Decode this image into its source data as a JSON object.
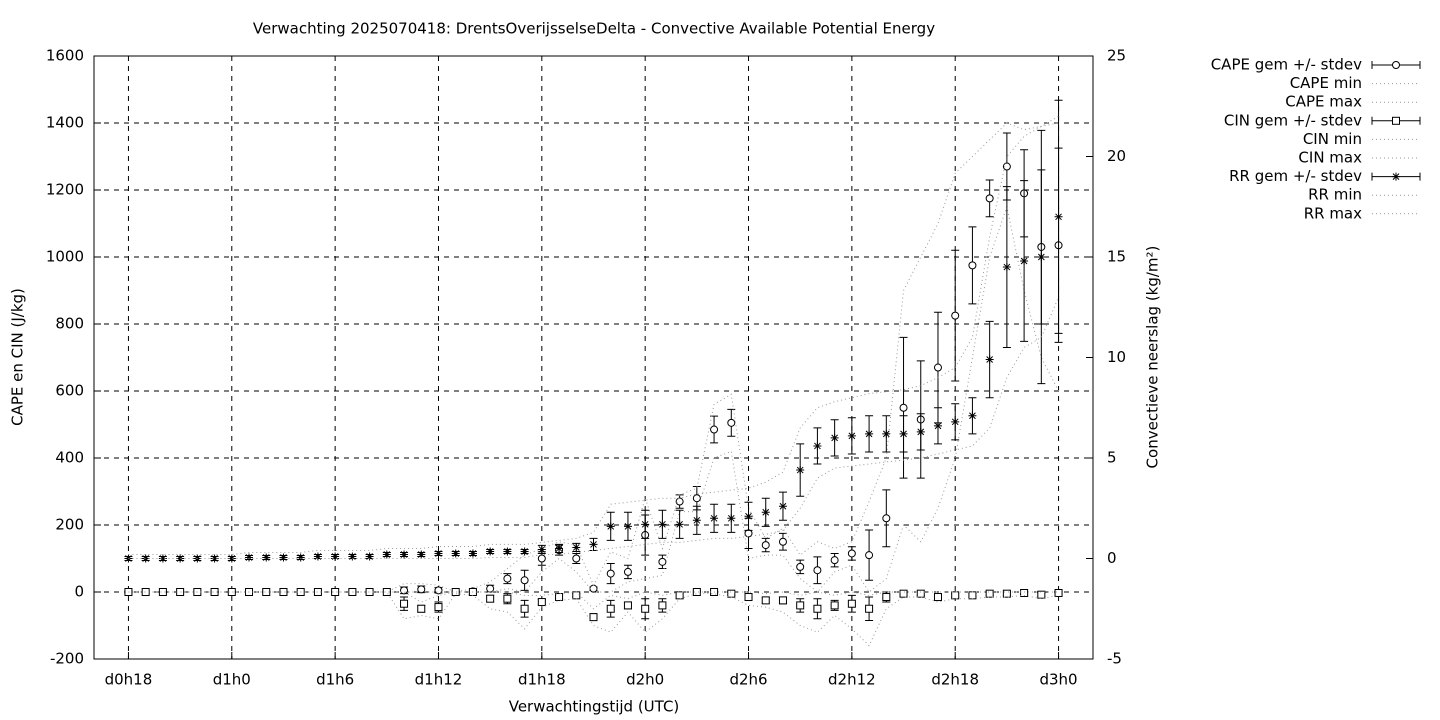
{
  "chart_data": {
    "type": "errorbar",
    "title": "Verwachting 2025070418: DrentsOverijsselseDelta - Convective Available Potential Energy",
    "xlabel": "Verwachtingstijd (UTC)",
    "ylabel": "CAPE en CIN (J/kg)",
    "y2label": "Convectieve neerslag (kg/m²)",
    "grid": true,
    "legend": "outside-right-top",
    "x": [
      18,
      19,
      20,
      21,
      22,
      23,
      24,
      25,
      26,
      27,
      28,
      29,
      30,
      31,
      32,
      33,
      34,
      35,
      36,
      37,
      38,
      39,
      40,
      41,
      42,
      43,
      44,
      45,
      46,
      47,
      48,
      49,
      50,
      51,
      52,
      53,
      54,
      55,
      56,
      57,
      58,
      59,
      60,
      61,
      62,
      63,
      64,
      65,
      66,
      67,
      68,
      69,
      70,
      71,
      72
    ],
    "xlim": [
      16,
      74
    ],
    "xticks": [
      {
        "value": 18,
        "label": "d0h18"
      },
      {
        "value": 24,
        "label": "d1h0"
      },
      {
        "value": 30,
        "label": "d1h6"
      },
      {
        "value": 36,
        "label": "d1h12"
      },
      {
        "value": 42,
        "label": "d1h18"
      },
      {
        "value": 48,
        "label": "d2h0"
      },
      {
        "value": 54,
        "label": "d2h6"
      },
      {
        "value": 60,
        "label": "d2h12"
      },
      {
        "value": 66,
        "label": "d2h18"
      },
      {
        "value": 72,
        "label": "d3h0"
      }
    ],
    "ylim": [
      -200,
      1600
    ],
    "yticks": [
      -200,
      0,
      200,
      400,
      600,
      800,
      1000,
      1200,
      1400,
      1600
    ],
    "y2lim": [
      -5,
      25
    ],
    "y2ticks": [
      -5,
      0,
      5,
      10,
      15,
      20,
      25
    ],
    "series": [
      {
        "name": "CAPE gem +/- stdev",
        "style": "errorbar",
        "marker": "circle",
        "color": "#000000",
        "values": [
          0,
          0,
          0,
          0,
          0,
          0,
          0,
          0,
          0,
          0,
          0,
          0,
          0,
          0,
          0,
          0,
          5,
          8,
          5,
          0,
          2,
          10,
          40,
          35,
          100,
          125,
          100,
          10,
          55,
          60,
          170,
          90,
          270,
          280,
          485,
          505,
          175,
          140,
          150,
          75,
          65,
          95,
          115,
          110,
          220,
          550,
          515,
          670,
          825,
          975,
          1175,
          1270,
          1190,
          1030,
          1035
        ],
        "errors": [
          0,
          0,
          0,
          0,
          0,
          0,
          0,
          0,
          0,
          0,
          0,
          0,
          0,
          0,
          0,
          0,
          10,
          10,
          8,
          0,
          3,
          10,
          15,
          30,
          20,
          15,
          15,
          5,
          30,
          20,
          60,
          20,
          20,
          35,
          40,
          40,
          45,
          20,
          25,
          20,
          40,
          20,
          20,
          75,
          85,
          210,
          175,
          165,
          195,
          115,
          55,
          100,
          130,
          230,
          290
        ]
      },
      {
        "name": "CAPE min",
        "style": "dotted",
        "color": "#999999",
        "values": [
          0,
          0,
          0,
          0,
          0,
          0,
          0,
          0,
          0,
          0,
          0,
          0,
          0,
          0,
          0,
          0,
          0,
          0,
          0,
          0,
          0,
          0,
          10,
          0,
          60,
          100,
          60,
          0,
          0,
          30,
          40,
          50,
          240,
          240,
          400,
          420,
          100,
          110,
          110,
          40,
          0,
          60,
          80,
          0,
          40,
          200,
          150,
          250,
          400,
          700,
          1000,
          1150,
          900,
          700,
          600
        ]
      },
      {
        "name": "CAPE max",
        "style": "dotted",
        "color": "#999999",
        "values": [
          0,
          0,
          0,
          0,
          0,
          0,
          0,
          0,
          0,
          0,
          0,
          0,
          0,
          0,
          0,
          0,
          25,
          25,
          20,
          0,
          10,
          30,
          70,
          110,
          130,
          150,
          140,
          20,
          120,
          100,
          280,
          130,
          290,
          310,
          560,
          590,
          250,
          160,
          190,
          110,
          150,
          130,
          150,
          270,
          400,
          900,
          1000,
          1100,
          1250,
          1300,
          1350,
          1400,
          1380,
          1390,
          1400
        ]
      },
      {
        "name": "CIN gem +/- stdev",
        "style": "errorbar",
        "marker": "square",
        "color": "#000000",
        "values": [
          0,
          0,
          0,
          0,
          0,
          0,
          0,
          0,
          0,
          0,
          0,
          0,
          0,
          0,
          0,
          0,
          -35,
          -50,
          -45,
          0,
          0,
          -20,
          -20,
          -50,
          -30,
          -15,
          -10,
          -75,
          -50,
          -40,
          -50,
          -40,
          -10,
          0,
          0,
          -5,
          -15,
          -25,
          -25,
          -40,
          -50,
          -40,
          -35,
          -50,
          -15,
          -5,
          -5,
          -15,
          -10,
          -10,
          -5,
          -5,
          -3,
          -8,
          -3
        ],
        "errors": [
          0,
          0,
          0,
          0,
          0,
          0,
          0,
          0,
          0,
          0,
          0,
          0,
          0,
          0,
          0,
          0,
          20,
          10,
          15,
          0,
          3,
          10,
          15,
          25,
          8,
          5,
          5,
          10,
          25,
          10,
          30,
          20,
          8,
          3,
          3,
          5,
          10,
          8,
          10,
          20,
          30,
          15,
          25,
          35,
          15,
          5,
          5,
          8,
          5,
          5,
          5,
          5,
          3,
          5,
          3
        ]
      },
      {
        "name": "CIN min",
        "style": "dotted",
        "color": "#999999",
        "values": [
          0,
          0,
          0,
          0,
          0,
          0,
          0,
          0,
          0,
          0,
          0,
          0,
          0,
          0,
          0,
          0,
          -80,
          -70,
          -80,
          -5,
          -10,
          -50,
          -60,
          -110,
          -45,
          -25,
          -20,
          -100,
          -120,
          -60,
          -120,
          -80,
          -20,
          -5,
          -5,
          -15,
          -40,
          -45,
          -60,
          -100,
          -120,
          -70,
          -110,
          -160,
          -50,
          -15,
          -15,
          -30,
          -20,
          -20,
          -15,
          -15,
          -10,
          -20,
          -10
        ]
      },
      {
        "name": "CIN max",
        "style": "dotted",
        "color": "#999999",
        "values": [
          0,
          0,
          0,
          0,
          0,
          0,
          0,
          0,
          0,
          0,
          0,
          0,
          0,
          0,
          0,
          0,
          0,
          -30,
          -10,
          0,
          0,
          0,
          0,
          -10,
          -10,
          -5,
          0,
          -50,
          -10,
          -20,
          0,
          -10,
          0,
          0,
          0,
          0,
          0,
          -5,
          0,
          -10,
          0,
          -10,
          0,
          -10,
          0,
          0,
          0,
          0,
          0,
          0,
          0,
          0,
          0,
          0,
          0
        ]
      },
      {
        "name": "RR gem +/- stdev",
        "style": "errorbar",
        "marker": "star",
        "color": "#000000",
        "axis": "y2",
        "values": [
          0,
          0,
          0,
          0,
          0,
          0,
          0,
          0.05,
          0.05,
          0.05,
          0.05,
          0.1,
          0.1,
          0.1,
          0.1,
          0.2,
          0.2,
          0.2,
          0.25,
          0.25,
          0.25,
          0.35,
          0.35,
          0.35,
          0.45,
          0.5,
          0.55,
          0.7,
          1.6,
          1.6,
          1.7,
          1.7,
          1.7,
          1.9,
          2.0,
          2.0,
          2.1,
          2.3,
          2.6,
          4.4,
          5.6,
          6.0,
          6.1,
          6.2,
          6.2,
          6.2,
          6.3,
          6.6,
          6.8,
          7.1,
          9.9,
          14.5,
          14.8,
          15.0,
          17.0
        ],
        "errors": [
          0.1,
          0.1,
          0.1,
          0.1,
          0.1,
          0.1,
          0.1,
          0.1,
          0.1,
          0.1,
          0.1,
          0.1,
          0.1,
          0.1,
          0.1,
          0.1,
          0.1,
          0.1,
          0.1,
          0.1,
          0.1,
          0.1,
          0.1,
          0.1,
          0.2,
          0.2,
          0.2,
          0.3,
          0.7,
          0.7,
          0.7,
          0.7,
          0.7,
          0.7,
          0.7,
          0.7,
          0.7,
          0.7,
          0.7,
          1.3,
          0.9,
          0.9,
          0.9,
          0.9,
          0.9,
          0.9,
          0.9,
          0.9,
          0.9,
          0.9,
          1.9,
          4.0,
          4.0,
          6.3,
          5.8
        ]
      },
      {
        "name": "RR min",
        "style": "dotted",
        "color": "#999999",
        "axis": "y2",
        "values": [
          0,
          0,
          0,
          0,
          0,
          0,
          0,
          0,
          0,
          0,
          0,
          0,
          0,
          0,
          0,
          0,
          0,
          0,
          0,
          0,
          0,
          0.05,
          0.05,
          0.05,
          0.2,
          0.2,
          0.3,
          0.4,
          0.5,
          0.6,
          0.7,
          0.8,
          0.8,
          0.9,
          1.0,
          1.0,
          1.1,
          1.2,
          1.4,
          2.5,
          4.0,
          4.5,
          4.6,
          4.7,
          4.8,
          4.9,
          5.0,
          5.2,
          5.4,
          5.6,
          6.5,
          9.0,
          10.5,
          11,
          13
        ]
      },
      {
        "name": "RR max",
        "style": "dotted",
        "color": "#999999",
        "axis": "y2",
        "values": [
          0.2,
          0.2,
          0.2,
          0.2,
          0.2,
          0.2,
          0.2,
          0.3,
          0.3,
          0.3,
          0.3,
          0.4,
          0.4,
          0.4,
          0.4,
          0.5,
          0.5,
          0.5,
          0.6,
          0.6,
          0.6,
          0.7,
          0.7,
          0.7,
          0.8,
          0.9,
          1.0,
          1.3,
          2.7,
          2.8,
          2.9,
          3.0,
          3.0,
          3.2,
          3.3,
          3.4,
          3.5,
          3.8,
          4.3,
          6.5,
          7.5,
          7.8,
          8.0,
          8.2,
          8.3,
          8.4,
          8.6,
          9.0,
          9.5,
          11,
          16,
          20,
          21,
          21.5,
          22
        ]
      }
    ]
  }
}
